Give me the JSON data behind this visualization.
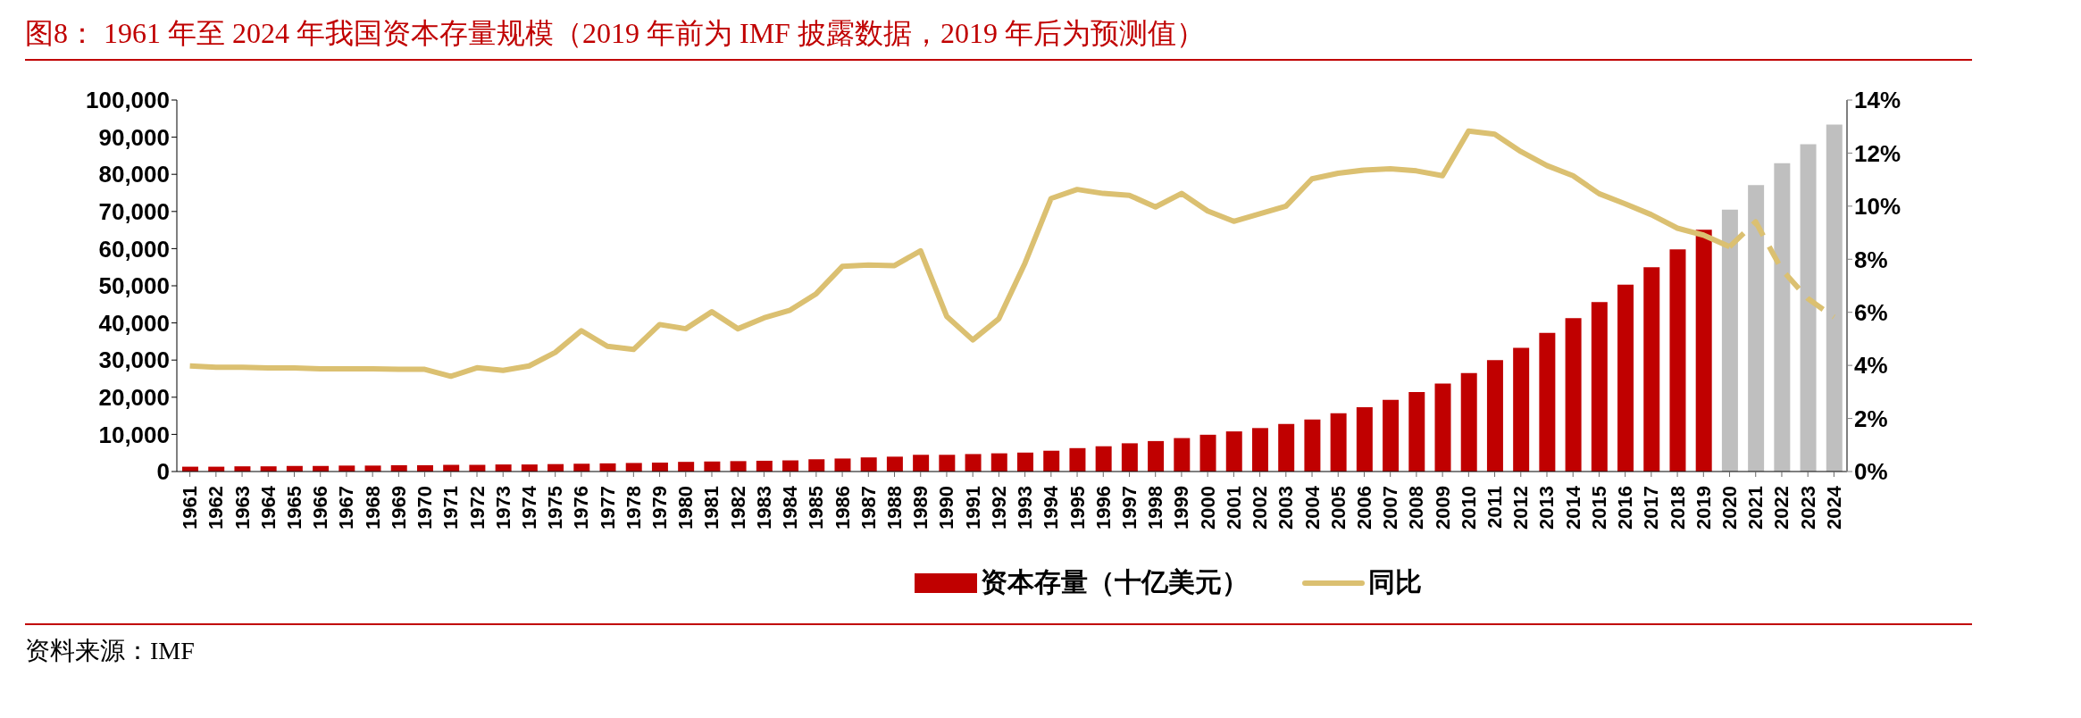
{
  "chart_data": {
    "type": "bar",
    "title": "图8：  1961 年至 2024 年我国资本存量规模（2019 年前为 IMF 披露数据，2019 年后为预测值）",
    "categories": [
      "1961",
      "1962",
      "1963",
      "1964",
      "1965",
      "1966",
      "1967",
      "1968",
      "1969",
      "1970",
      "1971",
      "1972",
      "1973",
      "1974",
      "1975",
      "1976",
      "1977",
      "1978",
      "1979",
      "1980",
      "1981",
      "1982",
      "1983",
      "1984",
      "1985",
      "1986",
      "1987",
      "1988",
      "1989",
      "1990",
      "1991",
      "1992",
      "1993",
      "1994",
      "1995",
      "1996",
      "1997",
      "1998",
      "1999",
      "2000",
      "2001",
      "2002",
      "2003",
      "2004",
      "2005",
      "2006",
      "2007",
      "2008",
      "2009",
      "2010",
      "2011",
      "2012",
      "2013",
      "2014",
      "2015",
      "2016",
      "2017",
      "2018",
      "2019",
      "2020",
      "2021",
      "2022",
      "2023",
      "2024"
    ],
    "series": [
      {
        "name": "资本存量（十亿美元）",
        "color": "#c00000",
        "colors": [
          "#c00000",
          "#c00000",
          "#c00000",
          "#c00000",
          "#c00000",
          "#c00000",
          "#c00000",
          "#c00000",
          "#c00000",
          "#c00000",
          "#c00000",
          "#c00000",
          "#c00000",
          "#c00000",
          "#c00000",
          "#c00000",
          "#c00000",
          "#c00000",
          "#c00000",
          "#c00000",
          "#c00000",
          "#c00000",
          "#c00000",
          "#c00000",
          "#c00000",
          "#c00000",
          "#c00000",
          "#c00000",
          "#c00000",
          "#c00000",
          "#c00000",
          "#c00000",
          "#c00000",
          "#c00000",
          "#c00000",
          "#c00000",
          "#c00000",
          "#c00000",
          "#c00000",
          "#c00000",
          "#c00000",
          "#c00000",
          "#c00000",
          "#c00000",
          "#c00000",
          "#c00000",
          "#c00000",
          "#c00000",
          "#c00000",
          "#c00000",
          "#c00000",
          "#c00000",
          "#c00000",
          "#c00000",
          "#c00000",
          "#c00000",
          "#c00000",
          "#c00000",
          "#c00000",
          "#bfbfbf",
          "#bfbfbf",
          "#bfbfbf",
          "#bfbfbf",
          "#bfbfbf"
        ],
        "values": [
          1300,
          1300,
          1400,
          1400,
          1500,
          1500,
          1600,
          1600,
          1700,
          1700,
          1800,
          1800,
          1900,
          1900,
          2000,
          2100,
          2200,
          2300,
          2400,
          2600,
          2700,
          2800,
          2900,
          3000,
          3300,
          3500,
          3800,
          4000,
          4500,
          4500,
          4700,
          4900,
          5100,
          5600,
          6300,
          6800,
          7600,
          8200,
          9000,
          9900,
          10800,
          11700,
          12800,
          14000,
          15700,
          17300,
          19300,
          21400,
          23700,
          26500,
          30000,
          33300,
          37300,
          41300,
          45600,
          50300,
          55000,
          59800,
          65100,
          70500,
          77100,
          83000,
          88100,
          93400
        ]
      },
      {
        "name": "同比",
        "type": "line",
        "axis": "y2",
        "color": "#dbc071",
        "line_style": "solid",
        "values": [
          3.98,
          3.93,
          3.93,
          3.9,
          3.9,
          3.87,
          3.87,
          3.87,
          3.85,
          3.85,
          3.59,
          3.91,
          3.81,
          3.98,
          4.49,
          5.31,
          4.72,
          4.6,
          5.54,
          5.38,
          6.02,
          5.38,
          5.79,
          6.08,
          6.7,
          7.73,
          7.78,
          7.76,
          8.32,
          5.85,
          4.96,
          5.76,
          7.85,
          10.29,
          10.63,
          10.48,
          10.41,
          9.97,
          10.48,
          9.82,
          9.43,
          9.71,
          10.0,
          11.03,
          11.24,
          11.36,
          11.41,
          11.33,
          11.15,
          12.83,
          12.71,
          12.06,
          11.53,
          11.15,
          10.47,
          10.09,
          9.68,
          9.17,
          8.91,
          8.47,
          null,
          null,
          null,
          null
        ]
      },
      {
        "type": "line",
        "axis": "y2",
        "color": "#dbc071",
        "line_style": "dashed",
        "values": [
          null,
          null,
          null,
          null,
          null,
          null,
          null,
          null,
          null,
          null,
          null,
          null,
          null,
          null,
          null,
          null,
          null,
          null,
          null,
          null,
          null,
          null,
          null,
          null,
          null,
          null,
          null,
          null,
          null,
          null,
          null,
          null,
          null,
          null,
          null,
          null,
          null,
          null,
          null,
          null,
          null,
          null,
          null,
          null,
          null,
          null,
          null,
          null,
          null,
          null,
          null,
          null,
          null,
          null,
          null,
          null,
          null,
          null,
          null,
          8.47,
          9.41,
          7.61,
          6.52,
          5.82
        ]
      }
    ],
    "ylim": [
      0,
      100000
    ],
    "yticks": [
      {
        "value": 0,
        "label": "0"
      },
      {
        "value": 10000,
        "label": "10,000"
      },
      {
        "value": 20000,
        "label": "20,000"
      },
      {
        "value": 30000,
        "label": "30,000"
      },
      {
        "value": 40000,
        "label": "40,000"
      },
      {
        "value": 50000,
        "label": "50,000"
      },
      {
        "value": 60000,
        "label": "60,000"
      },
      {
        "value": 70000,
        "label": "70,000"
      },
      {
        "value": 80000,
        "label": "80,000"
      },
      {
        "value": 90000,
        "label": "90,000"
      },
      {
        "value": 100000,
        "label": "100,000"
      }
    ],
    "y2lim": [
      0,
      14
    ],
    "y2ticks": [
      {
        "value": 0,
        "label": "0%"
      },
      {
        "value": 2,
        "label": "2%"
      },
      {
        "value": 4,
        "label": "4%"
      },
      {
        "value": 6,
        "label": "6%"
      },
      {
        "value": 8,
        "label": "8%"
      },
      {
        "value": 10,
        "label": "10%"
      },
      {
        "value": 12,
        "label": "12%"
      },
      {
        "value": 14,
        "label": "14%"
      }
    ],
    "grid": false,
    "legend": "bottom",
    "marker": "none",
    "annotations": [
      "资料来源：IMF"
    ]
  }
}
